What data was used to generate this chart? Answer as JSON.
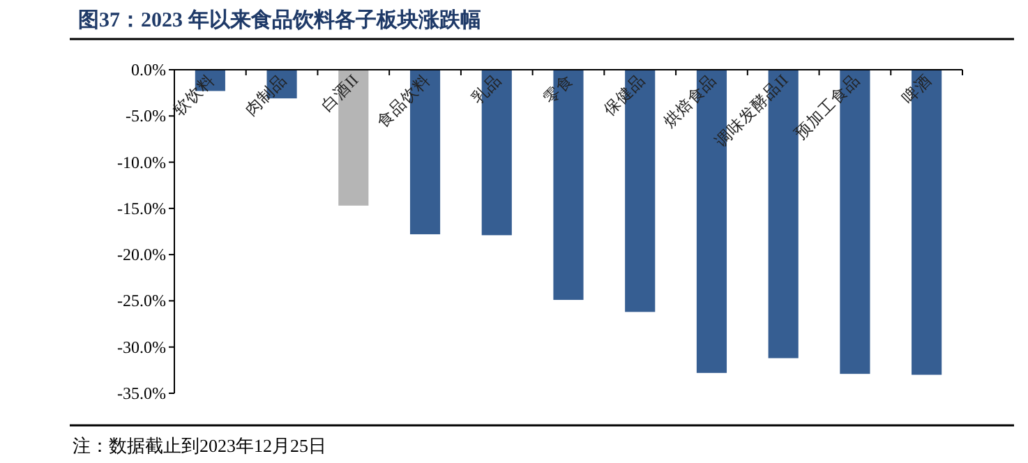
{
  "chart_data": {
    "type": "bar",
    "title": "图37：2023 年以来食品饮料各子板块涨跌幅",
    "categories": [
      "软饮料",
      "肉制品",
      "白酒II",
      "食品饮料",
      "乳品",
      "零食",
      "保健品",
      "烘焙食品",
      "调味发酵品II",
      "预加工食品",
      "啤酒"
    ],
    "values": [
      -2.3,
      -3.1,
      -14.7,
      -17.8,
      -17.9,
      -24.9,
      -26.2,
      -32.8,
      -31.2,
      -32.9,
      -33.0
    ],
    "colors": [
      "#365e92",
      "#365e92",
      "#b5b5b5",
      "#365e92",
      "#365e92",
      "#365e92",
      "#365e92",
      "#365e92",
      "#365e92",
      "#365e92",
      "#365e92"
    ],
    "ylim": [
      -35,
      0
    ],
    "yticks": [
      {
        "value": 0,
        "label": "0.0%"
      },
      {
        "value": -5,
        "label": "-5.0%"
      },
      {
        "value": -10,
        "label": "-10.0%"
      },
      {
        "value": -15,
        "label": "-15.0%"
      },
      {
        "value": -20,
        "label": "-20.0%"
      },
      {
        "value": -25,
        "label": "-25.0%"
      },
      {
        "value": -30,
        "label": "-30.0%"
      },
      {
        "value": -35,
        "label": "-35.0%"
      }
    ],
    "grid": false,
    "annotations": [
      "注：数据截止到2023年12月25日"
    ]
  }
}
